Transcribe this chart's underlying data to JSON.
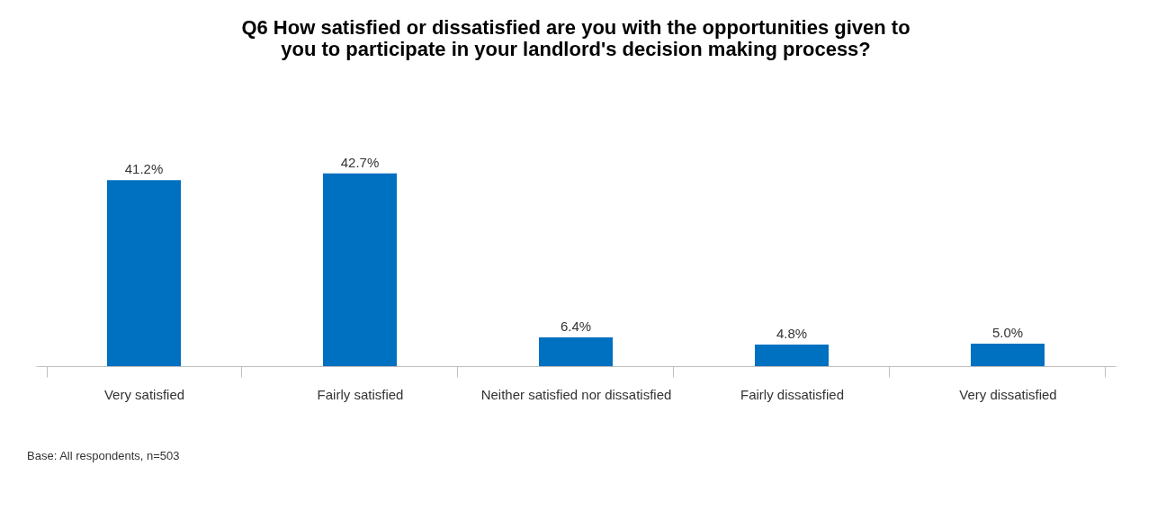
{
  "chart_data": {
    "type": "bar",
    "title": "Q6 How satisfied or dissatisfied are you with the opportunities given to you to participate in your landlord's decision making process?",
    "categories": [
      "Very satisfied",
      "Fairly satisfied",
      "Neither satisfied nor dissatisfied",
      "Fairly dissatisfied",
      "Very dissatisfied"
    ],
    "values": [
      41.2,
      42.7,
      6.4,
      4.8,
      5.0
    ],
    "value_labels": [
      "41.2%",
      "42.7%",
      "6.4%",
      "4.8%",
      "5.0%"
    ],
    "color": "#0070c0",
    "annotations": [
      "Base: All respondents, n=503"
    ],
    "grid": false
  }
}
